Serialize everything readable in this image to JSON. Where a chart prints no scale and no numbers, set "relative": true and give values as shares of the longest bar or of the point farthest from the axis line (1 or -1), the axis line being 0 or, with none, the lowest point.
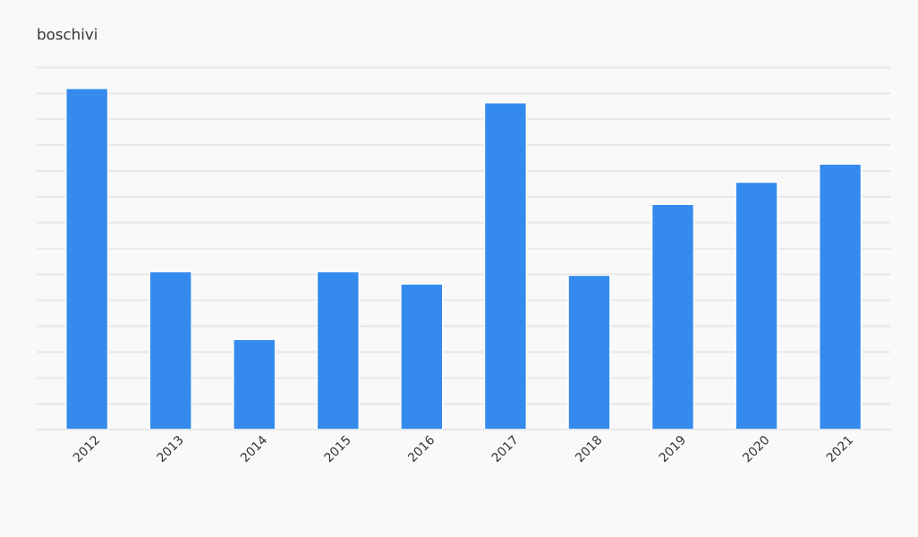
{
  "chart_data": {
    "type": "bar",
    "title": "boschivi",
    "categories": [
      "2012",
      "2013",
      "2014",
      "2015",
      "2016",
      "2017",
      "2018",
      "2019",
      "2020",
      "2021"
    ],
    "values": [
      1,
      0.463,
      0.264,
      0.463,
      0.427,
      0.958,
      0.452,
      0.66,
      0.725,
      0.778
    ],
    "color": "#348bed",
    "relative": true,
    "grid": "y",
    "legend": false
  }
}
